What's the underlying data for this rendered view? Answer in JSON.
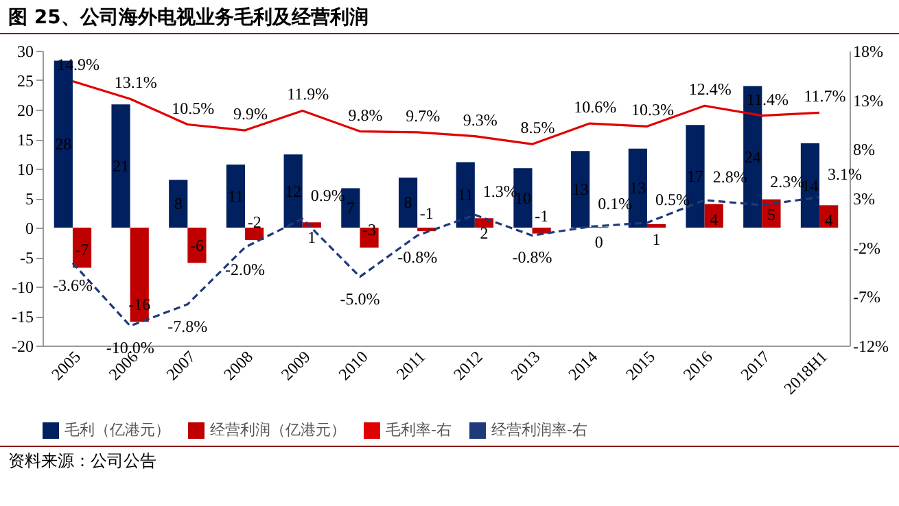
{
  "chart_data": {
    "type": "bar",
    "title": "图 25、公司海外电视业务毛利及经营利润",
    "categories": [
      "2005",
      "2006",
      "2007",
      "2008",
      "2009",
      "2010",
      "2011",
      "2012",
      "2013",
      "2014",
      "2015",
      "2016",
      "2017",
      "2018H1"
    ],
    "series": [
      {
        "name": "毛利（亿港元）",
        "color": "#002060",
        "values": [
          28.3,
          20.9,
          8.1,
          10.7,
          12.4,
          6.7,
          8.5,
          11.1,
          10.1,
          13.0,
          13.4,
          17.4,
          24.0,
          14.3
        ],
        "value_labels": [
          "28",
          "21",
          "8",
          "11",
          "12",
          "7",
          "8",
          "11",
          "10",
          "13",
          "13",
          "17",
          "24",
          "14"
        ]
      },
      {
        "name": "经营利润（亿港元）",
        "color": "#c00000",
        "values": [
          -6.8,
          -16.0,
          -6.0,
          -2.1,
          0.9,
          -3.4,
          -0.6,
          1.6,
          -1.0,
          0.1,
          0.6,
          4.0,
          4.8,
          3.8
        ],
        "value_labels": [
          "-7",
          "-16",
          "-6",
          "-2",
          "1",
          "-3",
          "-1",
          "2",
          "-1",
          "0",
          "1",
          "4",
          "5",
          "4"
        ]
      },
      {
        "name": "毛利率-右",
        "type": "line",
        "axis": "y2",
        "color": "#e00000",
        "line_style": "solid",
        "values": [
          14.9,
          13.1,
          10.5,
          9.9,
          11.9,
          9.8,
          9.7,
          9.3,
          8.5,
          10.6,
          10.3,
          12.4,
          11.4,
          11.7
        ],
        "value_labels": [
          "14.9%",
          "13.1%",
          "10.5%",
          "9.9%",
          "11.9%",
          "9.8%",
          "9.7%",
          "9.3%",
          "8.5%",
          "10.6%",
          "10.3%",
          "12.4%",
          "11.4%",
          "11.7%"
        ]
      },
      {
        "name": "经营利润率-右",
        "type": "line",
        "axis": "y2",
        "color": "#1f3a7a",
        "line_style": "dashed",
        "values": [
          -3.6,
          -10.0,
          -7.8,
          -2.0,
          0.9,
          -5.0,
          -0.8,
          1.3,
          -0.8,
          0.1,
          0.5,
          2.8,
          2.3,
          3.1
        ],
        "value_labels": [
          "-3.6%",
          "-10.0%",
          "-7.8%",
          "-2.0%",
          "0.9%",
          "-5.0%",
          "-0.8%",
          "1.3%",
          "-0.8%",
          "0.1%",
          "0.5%",
          "2.8%",
          "2.3%",
          "3.1%"
        ]
      }
    ],
    "ylim": [
      -20,
      30
    ],
    "yticks": [
      -20,
      -15,
      -10,
      -5,
      0,
      5,
      10,
      15,
      20,
      25,
      30
    ],
    "y2lim": [
      -12,
      18
    ],
    "y2ticks": [
      {
        "value": -12,
        "label": "-12%"
      },
      {
        "value": -7,
        "label": "-7%"
      },
      {
        "value": -2,
        "label": "-2%"
      },
      {
        "value": 3,
        "label": "3%"
      },
      {
        "value": 8,
        "label": "8%"
      },
      {
        "value": 13,
        "label": "13%"
      },
      {
        "value": 18,
        "label": "18%"
      }
    ],
    "grid": false,
    "legend": "bottom",
    "marker": "none",
    "annotations": [
      "资料来源：公司公告"
    ]
  }
}
